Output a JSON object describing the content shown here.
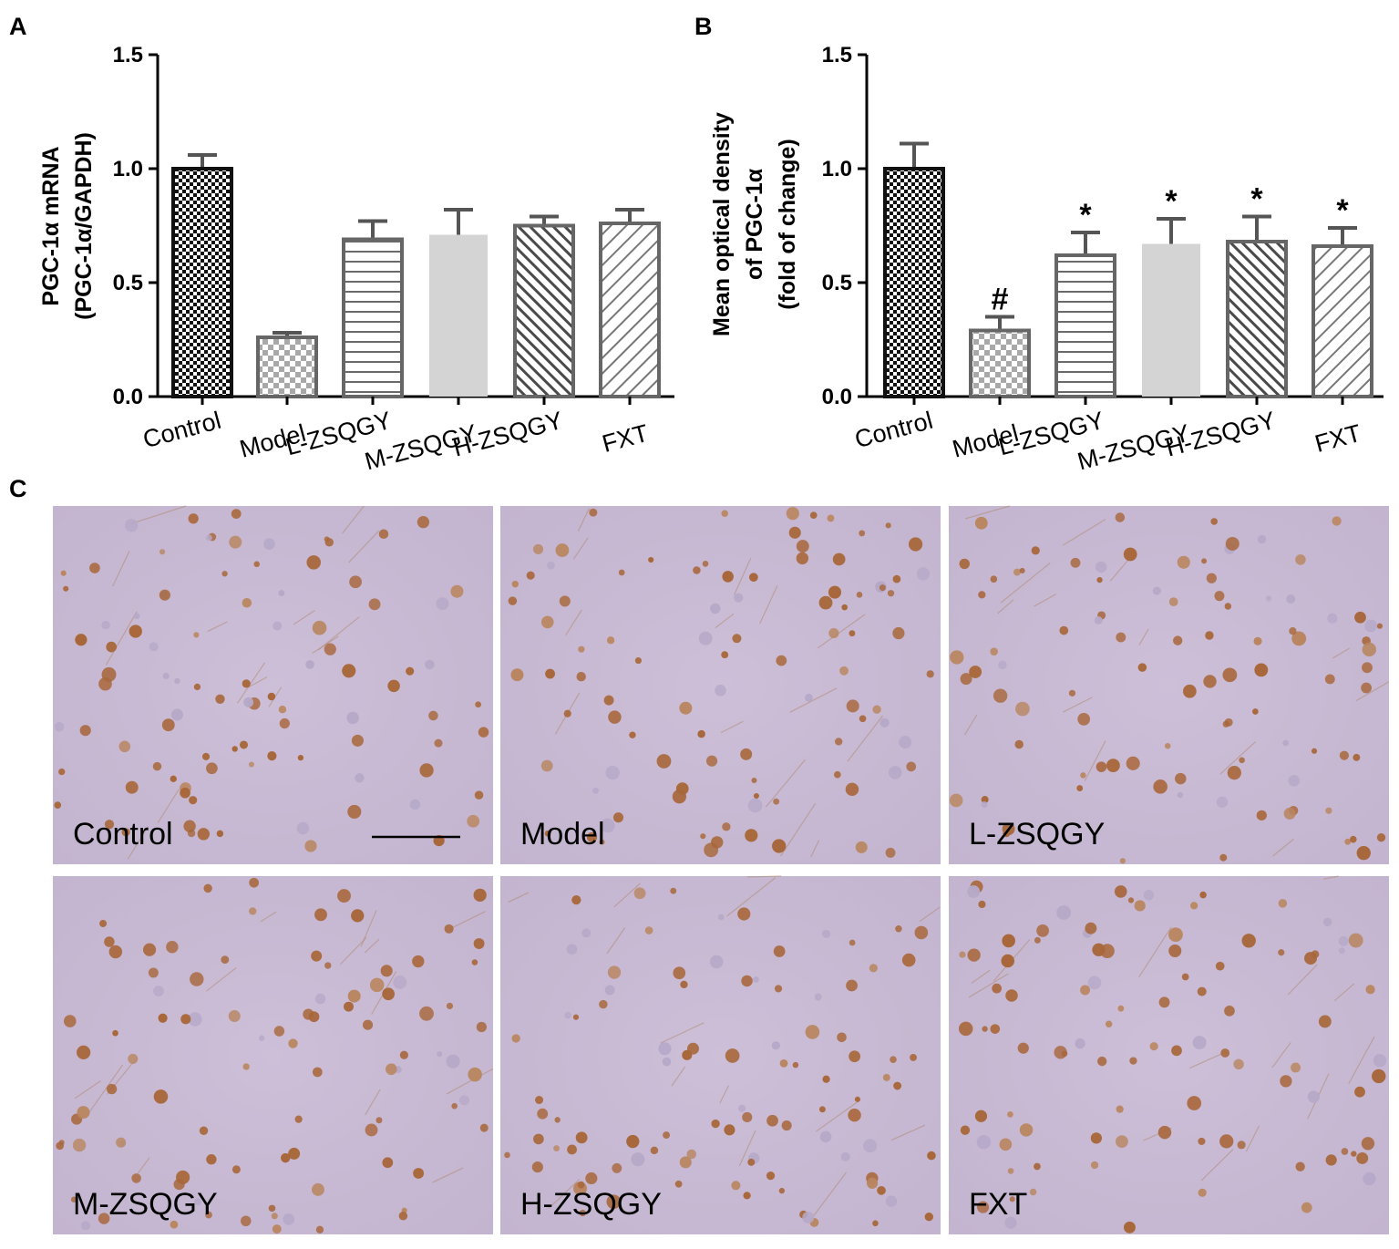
{
  "panels": {
    "a": "A",
    "b": "B",
    "c": "C"
  },
  "chart_data": [
    {
      "type": "bar",
      "panel": "A",
      "ylabel_line1": "PGC-1α mRNA",
      "ylabel_line2": "(PGC-1α/GAPDH)",
      "categories": [
        "Control",
        "Model",
        "L-ZSQGY",
        "M-ZSQGY",
        "H-ZSQGY",
        "FXT"
      ],
      "values": [
        1.0,
        0.26,
        0.69,
        0.71,
        0.75,
        0.76
      ],
      "errors": [
        0.06,
        0.02,
        0.08,
        0.11,
        0.04,
        0.06
      ],
      "significance": [
        "",
        "",
        "",
        "",
        "",
        ""
      ],
      "ylim": [
        0,
        1.5
      ],
      "yticks": [
        "0.0",
        "0.5",
        "1.0",
        "1.5"
      ],
      "grid": false,
      "bar_patterns": [
        "checker-dense",
        "checker-sparse",
        "horizontal-lines",
        "solid-light-gray",
        "diagonal-dense",
        "diagonal-sparse"
      ]
    },
    {
      "type": "bar",
      "panel": "B",
      "ylabel_line1": "Mean optical density",
      "ylabel_line2": "of PGC-1α",
      "ylabel_line3": "(fold of change)",
      "categories": [
        "Control",
        "Model",
        "L-ZSQGY",
        "M-ZSQGY",
        "H-ZSQGY",
        "FXT"
      ],
      "values": [
        1.0,
        0.29,
        0.62,
        0.67,
        0.68,
        0.66
      ],
      "errors": [
        0.11,
        0.06,
        0.1,
        0.11,
        0.11,
        0.08
      ],
      "significance": [
        "",
        "#",
        "*",
        "*",
        "*",
        "*"
      ],
      "ylim": [
        0,
        1.5
      ],
      "yticks": [
        "0.0",
        "0.5",
        "1.0",
        "1.5"
      ],
      "grid": false,
      "bar_patterns": [
        "checker-dense",
        "checker-sparse",
        "horizontal-lines",
        "solid-light-gray",
        "diagonal-dense",
        "diagonal-sparse"
      ]
    }
  ],
  "micrographs": [
    {
      "label": "Control",
      "scale_bar": true
    },
    {
      "label": "Model",
      "scale_bar": false
    },
    {
      "label": "L-ZSQGY",
      "scale_bar": false
    },
    {
      "label": "M-ZSQGY",
      "scale_bar": false
    },
    {
      "label": "H-ZSQGY",
      "scale_bar": false
    },
    {
      "label": "FXT",
      "scale_bar": false
    }
  ],
  "colors": {
    "tissue": "#c9bcd6",
    "nucleus": "#a8673a",
    "bar_stroke": "#555555",
    "light_bar": "#d4d4d4"
  }
}
